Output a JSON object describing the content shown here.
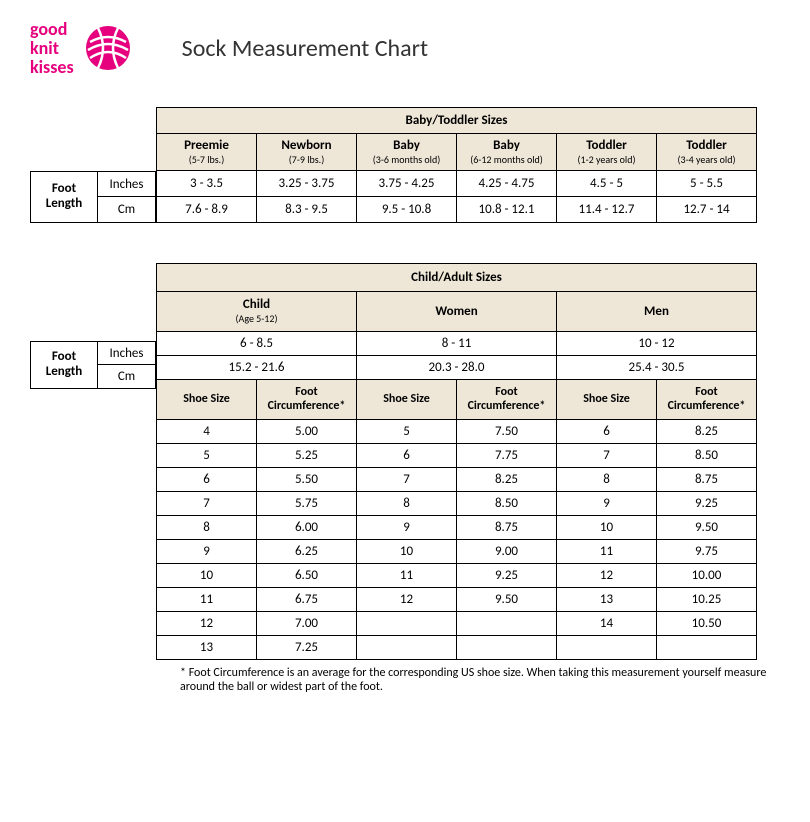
{
  "brand": {
    "line1": "good",
    "line2": "knit",
    "line3": "kisses"
  },
  "title": "Sock Measurement Chart",
  "colors": {
    "accent": "#e6007e",
    "header_bg": "#eee7d8",
    "border": "#000000"
  },
  "baby": {
    "group_title": "Baby/Toddler Sizes",
    "side_label": "Foot Length",
    "units": [
      "Inches",
      "Cm"
    ],
    "cols": [
      {
        "name": "Preemie",
        "sub": "(5-7 lbs.)"
      },
      {
        "name": "Newborn",
        "sub": "(7-9 lbs.)"
      },
      {
        "name": "Baby",
        "sub": "(3-6 months old)"
      },
      {
        "name": "Baby",
        "sub": "(6-12 months old)"
      },
      {
        "name": "Toddler",
        "sub": "(1-2 years old)"
      },
      {
        "name": "Toddler",
        "sub": "(3-4 years old)"
      }
    ],
    "inches": [
      "3 - 3.5",
      "3.25 - 3.75",
      "3.75 - 4.25",
      "4.25 - 4.75",
      "4.5 - 5",
      "5 - 5.5"
    ],
    "cm": [
      "7.6 - 8.9",
      "8.3 - 9.5",
      "9.5 - 10.8",
      "10.8 - 12.1",
      "11.4 - 12.7",
      "12.7 - 14"
    ]
  },
  "adult": {
    "group_title": "Child/Adult Sizes",
    "side_label": "Foot Length",
    "units": [
      "Inches",
      "Cm"
    ],
    "cols": [
      {
        "name": "Child",
        "sub": "(Age 5-12)"
      },
      {
        "name": "Women",
        "sub": ""
      },
      {
        "name": "Men",
        "sub": ""
      }
    ],
    "inches": [
      "6 - 8.5",
      "8 - 11",
      "10 - 12"
    ],
    "cm": [
      "15.2 - 21.6",
      "20.3 - 28.0",
      "25.4 - 30.5"
    ],
    "subheaders": [
      "Shoe Size",
      "Foot Circumference*"
    ],
    "rows": [
      [
        "4",
        "5.00",
        "5",
        "7.50",
        "6",
        "8.25"
      ],
      [
        "5",
        "5.25",
        "6",
        "7.75",
        "7",
        "8.50"
      ],
      [
        "6",
        "5.50",
        "7",
        "8.25",
        "8",
        "8.75"
      ],
      [
        "7",
        "5.75",
        "8",
        "8.50",
        "9",
        "9.25"
      ],
      [
        "8",
        "6.00",
        "9",
        "8.75",
        "10",
        "9.50"
      ],
      [
        "9",
        "6.25",
        "10",
        "9.00",
        "11",
        "9.75"
      ],
      [
        "10",
        "6.50",
        "11",
        "9.25",
        "12",
        "10.00"
      ],
      [
        "11",
        "6.75",
        "12",
        "9.50",
        "13",
        "10.25"
      ],
      [
        "12",
        "7.00",
        "",
        "",
        "14",
        "10.50"
      ],
      [
        "13",
        "7.25",
        "",
        "",
        "",
        ""
      ]
    ]
  },
  "footnote": "* Foot Circumference is an average for the corresponding US shoe size.  When taking this measurement yourself measure around the ball or widest part of the foot."
}
